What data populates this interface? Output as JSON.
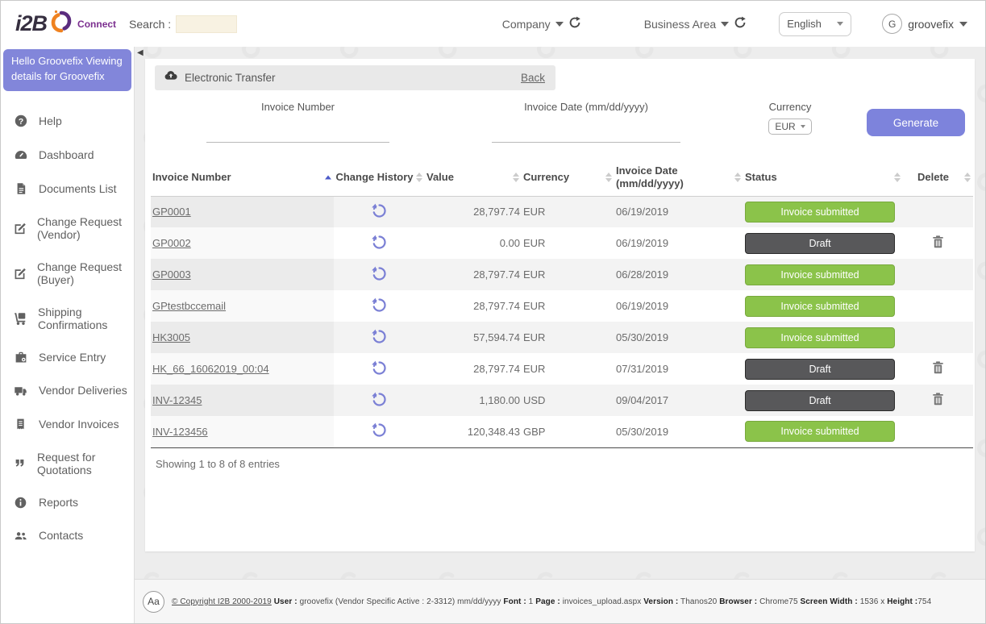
{
  "topbar": {
    "logo": {
      "brand": "i2B",
      "suffix": "Connect"
    },
    "search_label": "Search :",
    "search_value": "",
    "company_label": "Company",
    "business_area_label": "Business Area",
    "language_selected": "English",
    "user_initial": "G",
    "username": "groovefix"
  },
  "sidebar": {
    "greeting": "Hello Groovefix Viewing details for Groovefix",
    "items": [
      {
        "label": "Help",
        "icon": "help-icon"
      },
      {
        "label": "Dashboard",
        "icon": "dashboard-icon"
      },
      {
        "label": "Documents List",
        "icon": "document-icon"
      },
      {
        "label": "Change Request (Vendor)",
        "icon": "edit-icon"
      },
      {
        "label": "Change Request (Buyer)",
        "icon": "edit-icon"
      },
      {
        "label": "Shipping Confirmations",
        "icon": "shipping-icon"
      },
      {
        "label": "Service Entry",
        "icon": "briefcase-icon"
      },
      {
        "label": "Vendor Deliveries",
        "icon": "truck-icon"
      },
      {
        "label": "Vendor Invoices",
        "icon": "receipt-icon"
      },
      {
        "label": "Request for Quotations",
        "icon": "quote-icon"
      },
      {
        "label": "Reports",
        "icon": "info-icon"
      },
      {
        "label": "Contacts",
        "icon": "contacts-icon"
      }
    ]
  },
  "panel": {
    "title": "Electronic Transfer",
    "back_label": "Back",
    "filters": {
      "invoice_number_label": "Invoice Number",
      "invoice_number_value": "",
      "invoice_date_label": "Invoice Date (mm/dd/yyyy)",
      "invoice_date_value": "",
      "currency_label": "Currency",
      "currency_selected": "EUR",
      "generate_label": "Generate"
    },
    "table": {
      "columns": [
        {
          "label": "Invoice Number",
          "sort": "asc",
          "align": "left"
        },
        {
          "label": "Change History",
          "sort": "both",
          "align": "center"
        },
        {
          "label": "Value",
          "sort": "both",
          "align": "left"
        },
        {
          "label": "Currency",
          "sort": "both",
          "align": "left"
        },
        {
          "label": "Invoice Date (mm/dd/yyyy)",
          "sort": "both",
          "align": "left"
        },
        {
          "label": "Status",
          "sort": "both",
          "align": "left"
        },
        {
          "label": "Delete",
          "sort": "both",
          "align": "center"
        }
      ],
      "rows": [
        {
          "invoice_number": "GP0001",
          "value": "28,797.74",
          "currency": "EUR",
          "invoice_date": "06/19/2019",
          "status": "Invoice submitted",
          "status_type": "submitted",
          "deletable": false
        },
        {
          "invoice_number": "GP0002",
          "value": "0.00",
          "currency": "EUR",
          "invoice_date": "06/19/2019",
          "status": "Draft",
          "status_type": "draft",
          "deletable": true
        },
        {
          "invoice_number": "GP0003",
          "value": "28,797.74",
          "currency": "EUR",
          "invoice_date": "06/28/2019",
          "status": "Invoice submitted",
          "status_type": "submitted",
          "deletable": false
        },
        {
          "invoice_number": "GPtestbccemail",
          "value": "28,797.74",
          "currency": "EUR",
          "invoice_date": "06/19/2019",
          "status": "Invoice submitted",
          "status_type": "submitted",
          "deletable": false
        },
        {
          "invoice_number": "HK3005",
          "value": "57,594.74",
          "currency": "EUR",
          "invoice_date": "05/30/2019",
          "status": "Invoice submitted",
          "status_type": "submitted",
          "deletable": false
        },
        {
          "invoice_number": "HK_66_16062019_00:04",
          "value": "28,797.74",
          "currency": "EUR",
          "invoice_date": "07/31/2019",
          "status": "Draft",
          "status_type": "draft",
          "deletable": true
        },
        {
          "invoice_number": "INV-12345",
          "value": "1,180.00",
          "currency": "USD",
          "invoice_date": "09/04/2017",
          "status": "Draft",
          "status_type": "draft",
          "deletable": true
        },
        {
          "invoice_number": "INV-123456",
          "value": "120,348.43",
          "currency": "GBP",
          "invoice_date": "05/30/2019",
          "status": "Invoice submitted",
          "status_type": "submitted",
          "deletable": false
        }
      ],
      "summary": "Showing 1 to 8 of 8 entries"
    }
  },
  "footer": {
    "font_badge": "Aa",
    "segments": [
      {
        "text": "© Copyright I2B 2000-2019",
        "bold": false,
        "link": true
      },
      {
        "text": " ",
        "bold": false
      },
      {
        "text": "User :",
        "bold": true
      },
      {
        "text": " groovefix (Vendor Specific Active : 2-3312)  mm/dd/yyyy ",
        "bold": false
      },
      {
        "text": "Font :",
        "bold": true
      },
      {
        "text": " 1   ",
        "bold": false
      },
      {
        "text": "Page :",
        "bold": true
      },
      {
        "text": " invoices_upload.aspx ",
        "bold": false
      },
      {
        "text": "Version :",
        "bold": true
      },
      {
        "text": " Thanos20 ",
        "bold": false
      },
      {
        "text": "Browser :",
        "bold": true
      },
      {
        "text": " Chrome75 ",
        "bold": false
      },
      {
        "text": "Screen Width :",
        "bold": true
      },
      {
        "text": " 1536  x ",
        "bold": false
      },
      {
        "text": "Height :",
        "bold": true
      },
      {
        "text": "754",
        "bold": false
      }
    ]
  },
  "colors": {
    "accent_purple": "#7d83dc",
    "sidebar_header_purple": "#8286da",
    "status_green": "#8bc34a",
    "status_dark": "#58585a",
    "history_icon_purple": "#7b80d5",
    "logo_orange": "#ef8220",
    "logo_purple": "#5b2c7e",
    "search_bg_cream": "#f8f2e2",
    "sort_active_blue": "#4d5bc9"
  }
}
